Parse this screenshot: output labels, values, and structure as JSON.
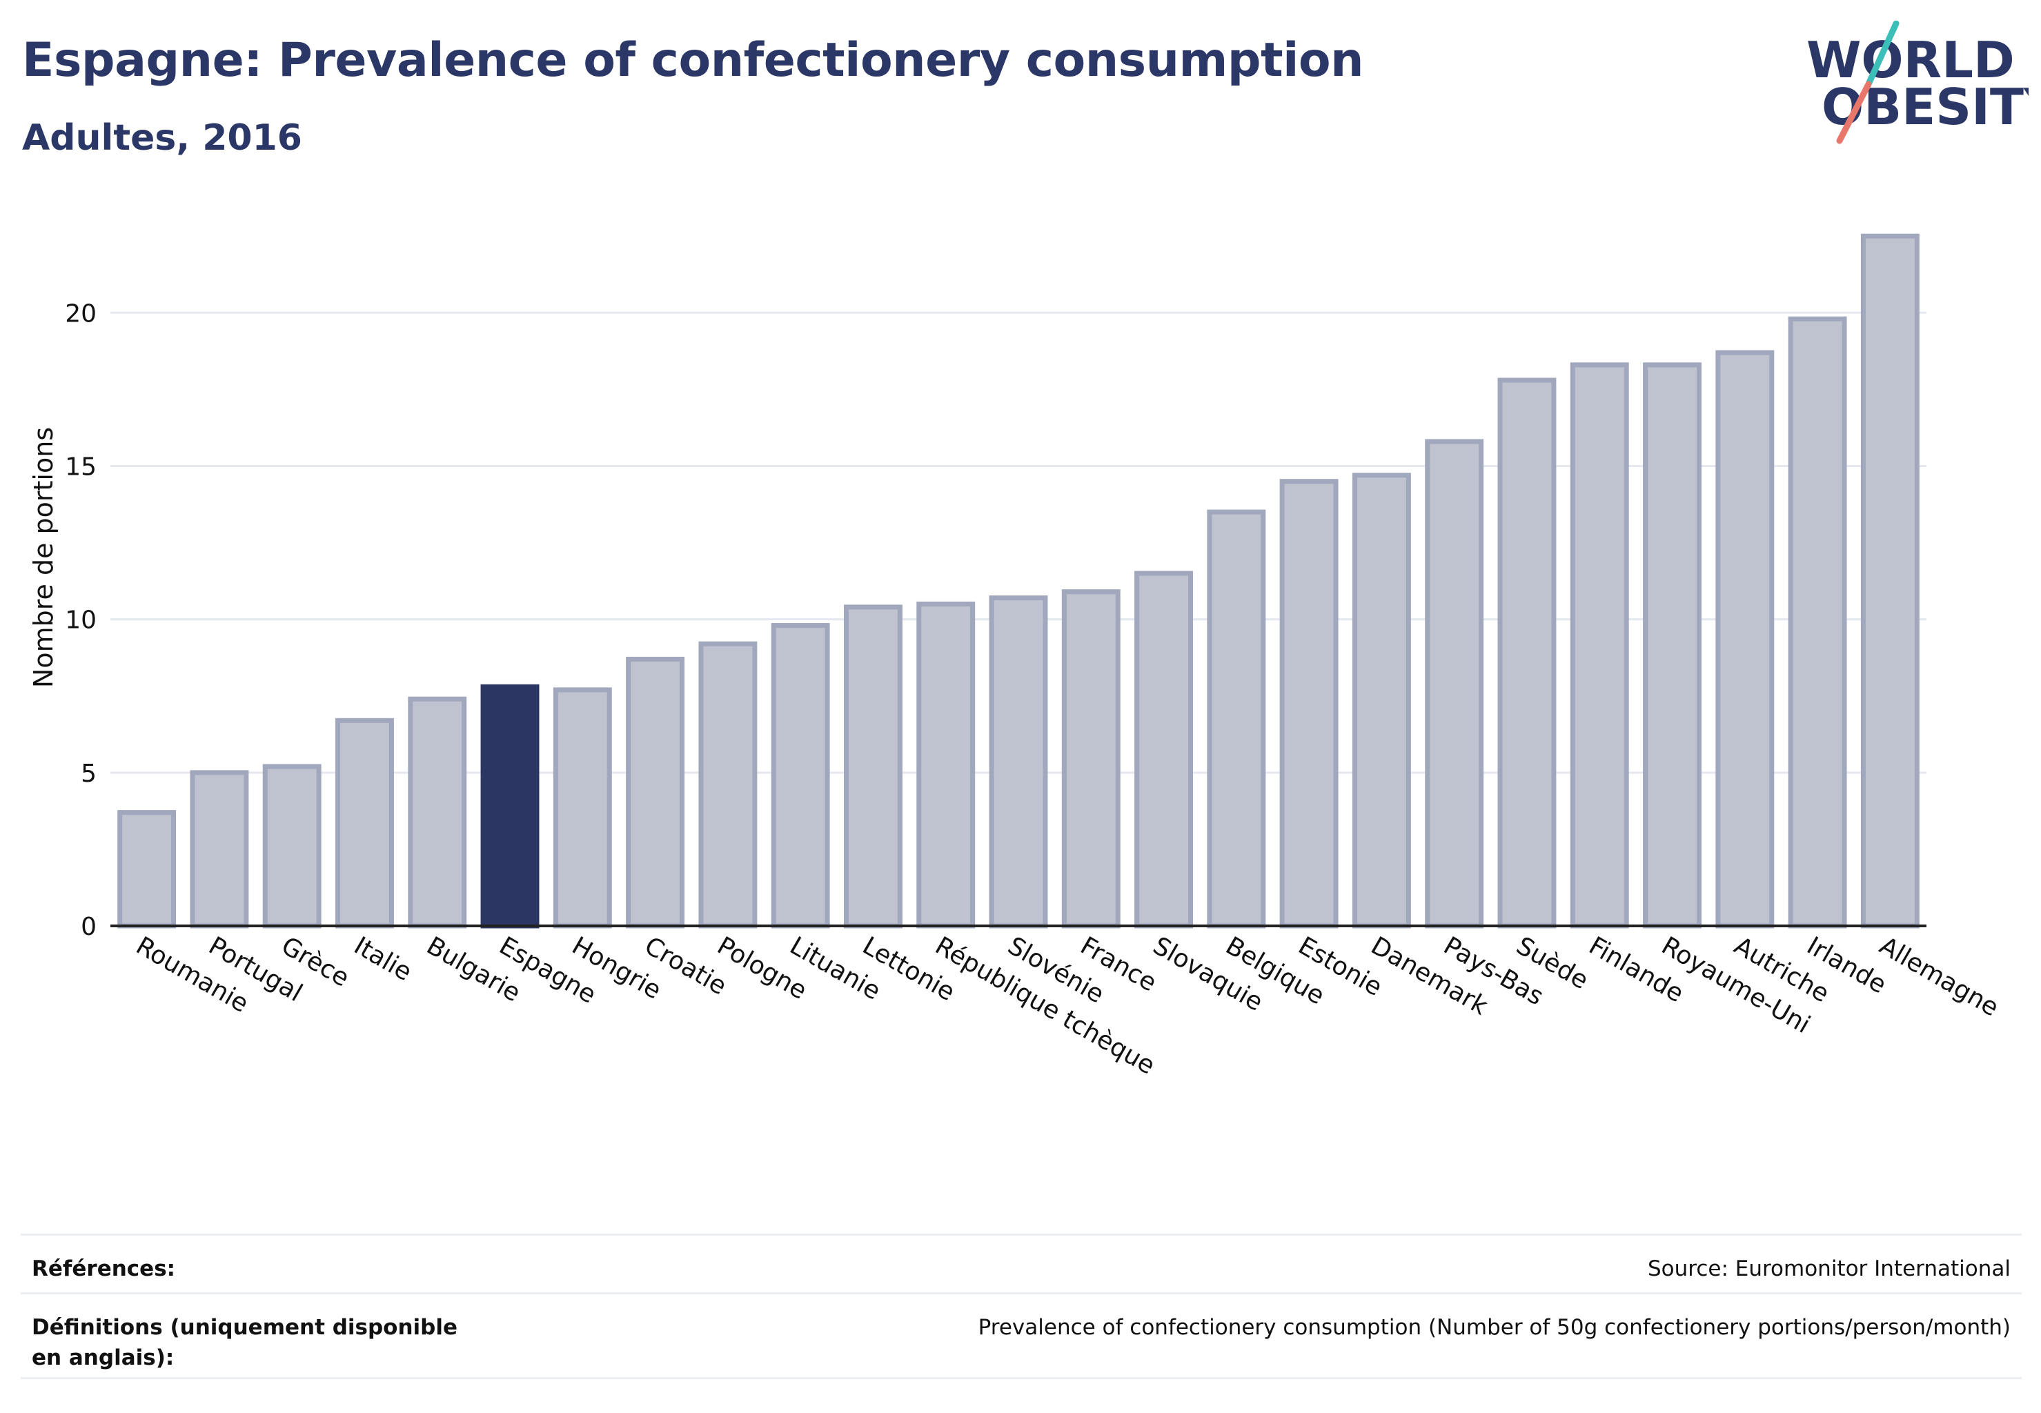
{
  "header": {
    "title": "Espagne: Prevalence of confectionery consumption",
    "subtitle": "Adultes, 2016"
  },
  "logo": {
    "line1": "WORLD",
    "line2": "OBESITY",
    "colors": {
      "text": "#2b3766",
      "slash_top": "#3cbfb8",
      "slash_bottom": "#e8766a"
    }
  },
  "chart_data": {
    "type": "bar",
    "title": "Espagne: Prevalence of confectionery consumption",
    "subtitle": "Adultes, 2016",
    "xlabel": "",
    "ylabel": "Nombre de portions",
    "ylim": [
      0,
      23
    ],
    "yticks": [
      0,
      5,
      10,
      15,
      20
    ],
    "grid": true,
    "highlight": "Espagne",
    "colors": {
      "bar": "#bfc3d0",
      "bar_border": "#a1a7bd",
      "highlight": "#2b3663",
      "grid": "#e6e8ef",
      "axis": "#222222"
    },
    "categories": [
      "Roumanie",
      "Portugal",
      "Grèce",
      "Italie",
      "Bulgarie",
      "Espagne",
      "Hongrie",
      "Croatie",
      "Pologne",
      "Lituanie",
      "Lettonie",
      "République tchèque",
      "Slovénie",
      "France",
      "Slovaquie",
      "Belgique",
      "Estonie",
      "Danemark",
      "Pays-Bas",
      "Suède",
      "Finlande",
      "Royaume-Uni",
      "Autriche",
      "Irlande",
      "Allemagne"
    ],
    "values": [
      3.7,
      5.0,
      5.2,
      6.7,
      7.4,
      7.8,
      7.7,
      8.7,
      9.2,
      9.8,
      10.4,
      10.5,
      10.7,
      10.9,
      11.5,
      13.5,
      14.5,
      14.7,
      15.8,
      17.8,
      18.3,
      18.3,
      18.7,
      19.8,
      22.5
    ]
  },
  "footer": {
    "references_label": "Références:",
    "references_value": "Source: Euromonitor International",
    "definitions_label": "Définitions (uniquement disponible en anglais):",
    "definitions_value": "Prevalence of confectionery consumption (Number of 50g confectionery portions/person/month)"
  }
}
